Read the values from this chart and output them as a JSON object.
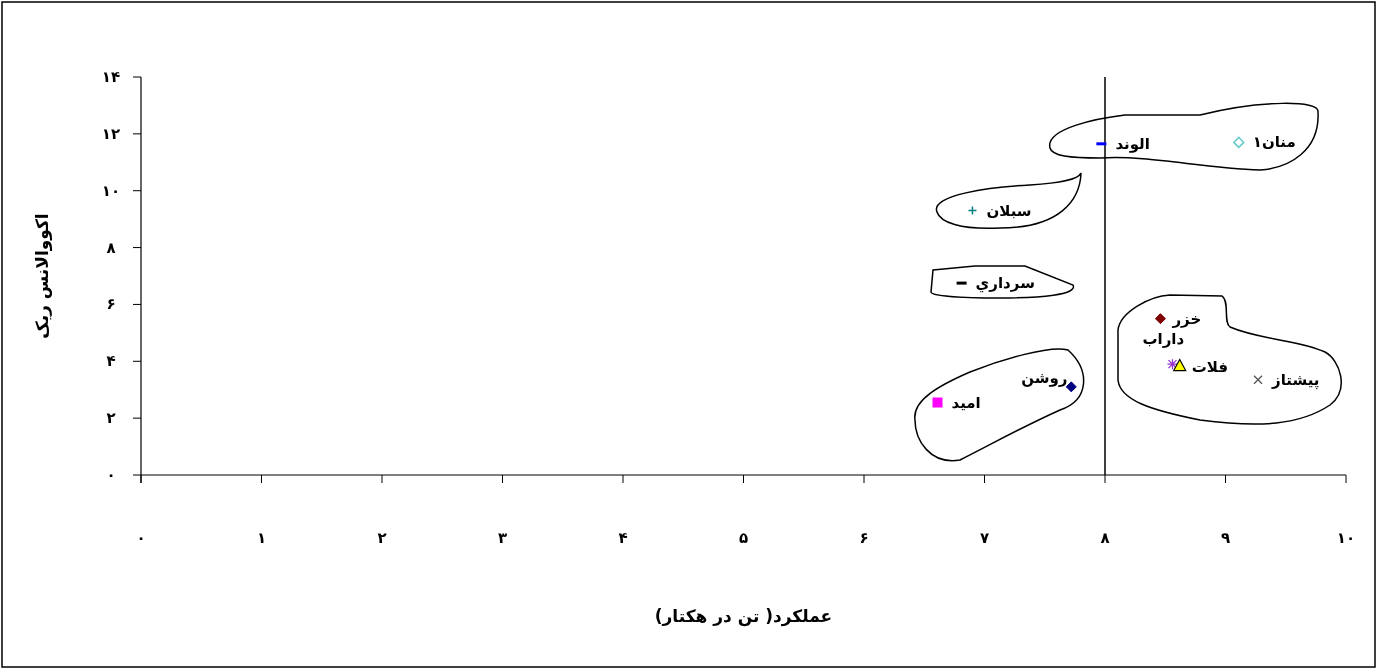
{
  "chart_data": {
    "type": "scatter",
    "xlabel": "عملکرد( تن در هکتار)",
    "ylabel": "اکووالانس ریک",
    "xlim": [
      0,
      10
    ],
    "xticks": [
      {
        "value": 0,
        "label": "۰"
      },
      {
        "value": 1,
        "label": "۱"
      },
      {
        "value": 2,
        "label": "۲"
      },
      {
        "value": 3,
        "label": "۳"
      },
      {
        "value": 4,
        "label": "۴"
      },
      {
        "value": 5,
        "label": "۵"
      },
      {
        "value": 6,
        "label": "۶"
      },
      {
        "value": 7,
        "label": "۷"
      },
      {
        "value": 8,
        "label": "۸"
      },
      {
        "value": 9,
        "label": "۹"
      },
      {
        "value": 10,
        "label": "۱۰"
      }
    ],
    "ylim": [
      0,
      14
    ],
    "yticks": [
      {
        "value": 0,
        "label": "۰"
      },
      {
        "value": 2,
        "label": "۲"
      },
      {
        "value": 4,
        "label": "۴"
      },
      {
        "value": 6,
        "label": "۶"
      },
      {
        "value": 8,
        "label": "۸"
      },
      {
        "value": 10,
        "label": "۱۰"
      },
      {
        "value": 12,
        "label": "۱۲"
      },
      {
        "value": 14,
        "label": "۱۴"
      }
    ],
    "grid": false,
    "legend": false,
    "ref_lines": [
      {
        "axis": "x",
        "value": 8,
        "color": "#000000",
        "line_style": "solid"
      }
    ],
    "series": [
      {
        "name": "الوند",
        "color": "#0000ff",
        "x": [
          7.97
        ],
        "values": [
          11.65
        ]
      },
      {
        "name": "منان۱",
        "color": "#66cccc",
        "marker": "diamond",
        "x": [
          9.11
        ],
        "values": [
          11.7
        ]
      },
      {
        "name": "سبلان",
        "color": "#008080",
        "marker": "plus",
        "x": [
          6.9
        ],
        "values": [
          9.3
        ]
      },
      {
        "name": "سرداري",
        "color": "#000000",
        "x": [
          6.81
        ],
        "values": [
          6.75
        ]
      },
      {
        "name": "خزر",
        "color": "#800000",
        "marker": "diamond",
        "x": [
          8.46
        ],
        "values": [
          5.5
        ]
      },
      {
        "name": "داراب",
        "color": "#9933cc",
        "marker": "cross",
        "x": [
          8.56
        ],
        "values": [
          3.9
        ]
      },
      {
        "name": "فلات",
        "color": "#ffff00",
        "marker": "triangle",
        "x": [
          8.62
        ],
        "values": [
          3.85
        ]
      },
      {
        "name": "پیشتاز",
        "color": "#555555",
        "marker": "x",
        "x": [
          9.27
        ],
        "values": [
          3.35
        ]
      },
      {
        "name": "روشن",
        "color": "#000080",
        "marker": "diamond",
        "x": [
          7.72
        ],
        "values": [
          3.1
        ]
      },
      {
        "name": "امید",
        "color": "#ff00ff",
        "marker": "square",
        "x": [
          6.61
        ],
        "values": [
          2.55
        ]
      }
    ]
  }
}
